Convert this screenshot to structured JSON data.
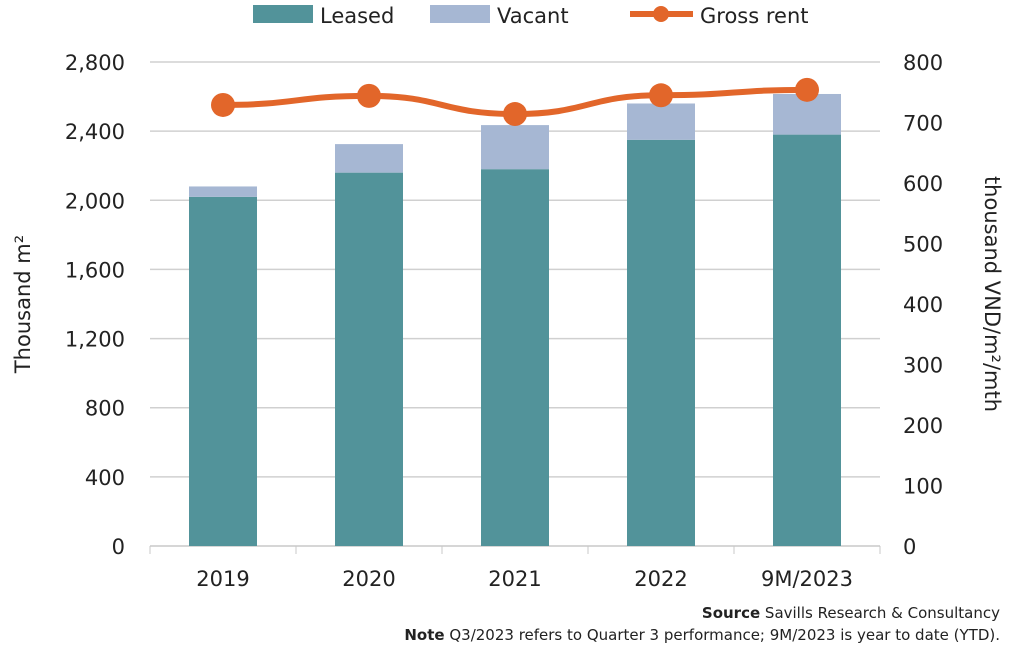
{
  "chart_data": {
    "type": "bar",
    "categories": [
      "2019",
      "2020",
      "2021",
      "2022",
      "9M/2023"
    ],
    "series": [
      {
        "name": "Leased",
        "type": "bar",
        "stack": "total",
        "axis": "left",
        "color": "#52939a",
        "values": [
          2020,
          2160,
          2180,
          2350,
          2380
        ]
      },
      {
        "name": "Vacant",
        "type": "bar",
        "stack": "total",
        "axis": "left",
        "color": "#a6b7d3",
        "values": [
          60,
          165,
          255,
          210,
          235
        ]
      },
      {
        "name": "Gross rent",
        "type": "line",
        "axis": "right",
        "color": "#e2662a",
        "values": [
          729,
          744,
          714,
          745,
          754
        ]
      }
    ],
    "ylabel": "Thousand m²",
    "ylabel_right": "thousand VND/m²/mth",
    "ylim": [
      0,
      2800
    ],
    "ylim_right": [
      0,
      800
    ],
    "yticks": [
      "0",
      "400",
      "800",
      "1,200",
      "1,600",
      "2,000",
      "2,400",
      "2,800"
    ],
    "yticks_right": [
      "0",
      "100",
      "200",
      "300",
      "400",
      "500",
      "600",
      "700",
      "800"
    ],
    "grid": true,
    "legend": "top",
    "source_label": "Source",
    "source_text": "Savills Research & Consultancy",
    "note_label": "Note",
    "note_text": "Q3/2023 refers to Quarter 3 performance; 9M/2023 is year to date (YTD)."
  }
}
